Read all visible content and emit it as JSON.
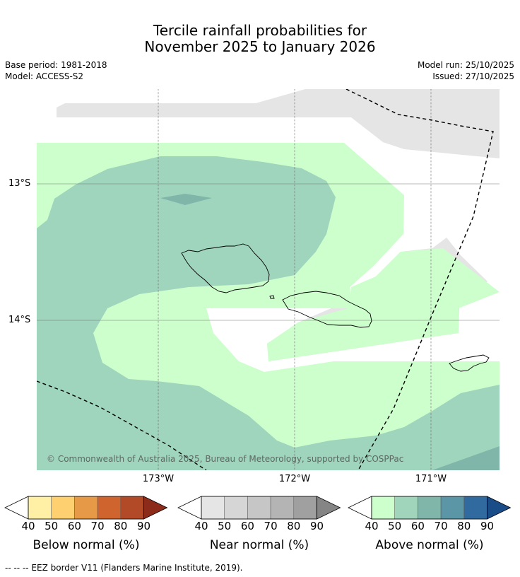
{
  "title": {
    "line1": "Tercile rainfall probabilities for",
    "line2": "November 2025 to January 2026"
  },
  "meta": {
    "base_period": "Base period: 1981-2018",
    "model": "Model: ACCESS-S2",
    "model_run": "Model run: 25/10/2025",
    "issued": "Issued: 27/10/2025"
  },
  "map": {
    "lat_labels": [
      "13°S",
      "14°S"
    ],
    "lon_labels": [
      "173°W",
      "172°W",
      "171°W"
    ],
    "copyright": "© Commonwealth of Australia 2025, Bureau of Meteorology, supported by COSPPac",
    "colors": {
      "near40": "#e5e5e5",
      "above40": "#ccffcc",
      "above50": "#9fd4bd",
      "above60": "#7fb6a9",
      "above70": "#5b96a6"
    }
  },
  "colorbars": [
    {
      "title": "Below normal (%)",
      "ticks": [
        "40",
        "50",
        "60",
        "70",
        "80",
        "90"
      ],
      "colors": [
        "#fff0a6",
        "#ffd070",
        "#e69a48",
        "#d0642f",
        "#b24a28",
        "#8c2b19"
      ]
    },
    {
      "title": "Near normal (%)",
      "ticks": [
        "40",
        "50",
        "60",
        "70",
        "80",
        "90"
      ],
      "colors": [
        "#e5e5e5",
        "#d6d6d6",
        "#c6c6c6",
        "#b4b4b4",
        "#a0a0a0",
        "#858585"
      ]
    },
    {
      "title": "Above normal (%)",
      "ticks": [
        "40",
        "50",
        "60",
        "70",
        "80",
        "90"
      ],
      "colors": [
        "#ccffcc",
        "#a0d4bb",
        "#7fb6a9",
        "#5b96a6",
        "#316a9e",
        "#1a4c88"
      ]
    }
  ],
  "footnote": "--  --  -- EEZ border V11 (Flanders Marine Institute, 2019)."
}
